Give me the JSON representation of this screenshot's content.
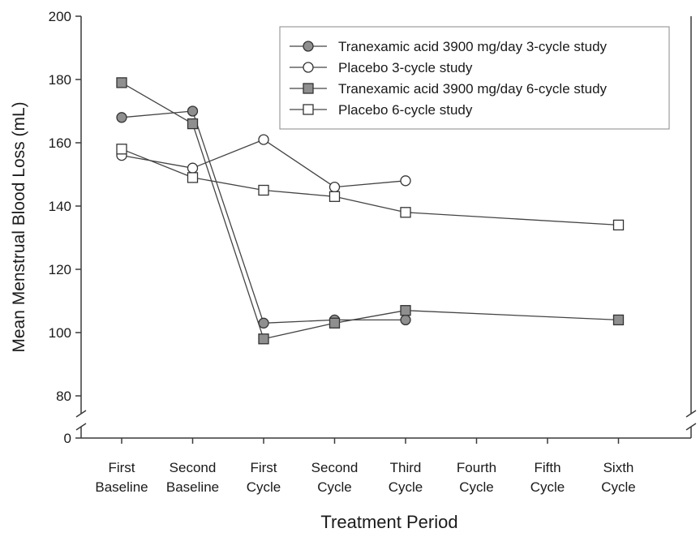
{
  "chart_data": {
    "type": "line",
    "xlabel": "Treatment Period",
    "ylabel": "Mean Menstrual Blood Loss (mL)",
    "categories": [
      [
        "First",
        "Baseline"
      ],
      [
        "Second",
        "Baseline"
      ],
      [
        "First",
        "Cycle"
      ],
      [
        "Second",
        "Cycle"
      ],
      [
        "Third",
        "Cycle"
      ],
      [
        "Fourth",
        "Cycle"
      ],
      [
        "Fifth",
        "Cycle"
      ],
      [
        "Sixth",
        "Cycle"
      ]
    ],
    "y_ticks": [
      80,
      100,
      120,
      140,
      160,
      180,
      200
    ],
    "y_break_tick": 0,
    "ylim": [
      80,
      200
    ],
    "axis_break": true,
    "grid": false,
    "legend_position": "top-right",
    "series": [
      {
        "name": "Tranexamic acid 3900 mg/day 3-cycle study",
        "marker": "circle",
        "fill": "#8f8f8f",
        "values": [
          168,
          170,
          103,
          104,
          104,
          null,
          null,
          null
        ]
      },
      {
        "name": "Placebo 3-cycle study",
        "marker": "circle",
        "fill": "#ffffff",
        "values": [
          156,
          152,
          161,
          146,
          148,
          null,
          null,
          null
        ]
      },
      {
        "name": "Tranexamic acid 3900 mg/day 6-cycle study",
        "marker": "square",
        "fill": "#8f8f8f",
        "values": [
          179,
          166,
          98,
          103,
          107,
          null,
          null,
          104
        ]
      },
      {
        "name": "Placebo 6-cycle study",
        "marker": "square",
        "fill": "#ffffff",
        "values": [
          158,
          149,
          145,
          143,
          138,
          null,
          null,
          134
        ]
      }
    ]
  }
}
